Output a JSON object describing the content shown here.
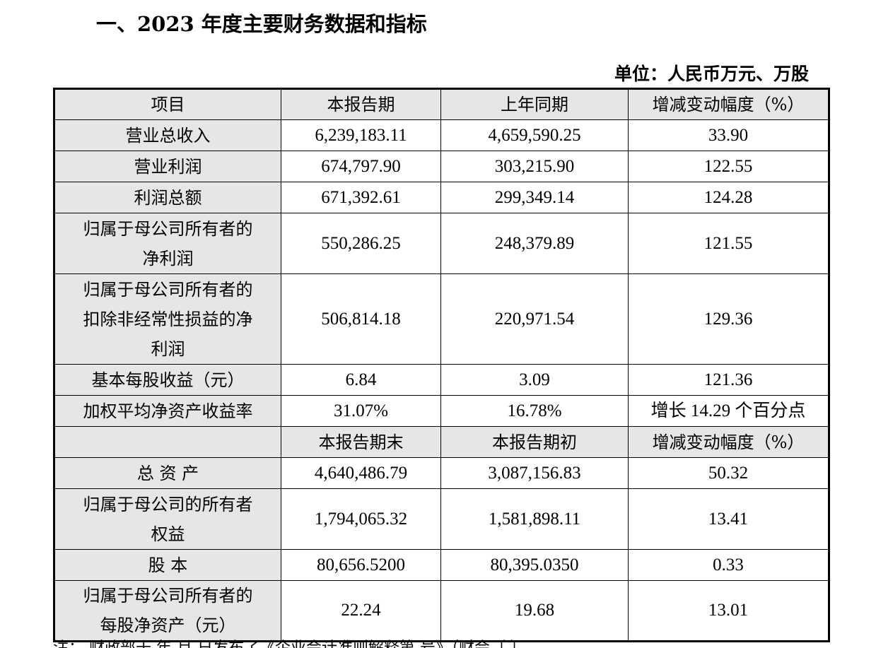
{
  "title": "一、2023 年度主要财务数据和指标",
  "unit": "单位：人民币万元、万股",
  "header1": [
    "项目",
    "本报告期",
    "上年同期",
    "增减变动幅度（%）"
  ],
  "rows1": [
    {
      "item": "营业总收入",
      "current": "6,239,183.11",
      "previous": "4,659,590.25",
      "change": "33.90",
      "h": 1
    },
    {
      "item": "营业利润",
      "current": "674,797.90",
      "previous": "303,215.90",
      "change": "122.55",
      "h": 1
    },
    {
      "item": "利润总额",
      "current": "671,392.61",
      "previous": "299,349.14",
      "change": "124.28",
      "h": 1
    },
    {
      "item": "归属于母公司所有者的\n净利润",
      "current": "550,286.25",
      "previous": "248,379.89",
      "change": "121.55",
      "h": 2
    },
    {
      "item": "归属于母公司所有者的\n扣除非经常性损益的净\n利润",
      "current": "506,814.18",
      "previous": "220,971.54",
      "change": "129.36",
      "h": 3
    },
    {
      "item": "基本每股收益（元）",
      "current": "6.84",
      "previous": "3.09",
      "change": "121.36",
      "h": 1
    },
    {
      "item": "加权平均净资产收益率",
      "current": "31.07%",
      "previous": "16.78%",
      "change": "增长 14.29 个百分点",
      "h": 1
    }
  ],
  "header2": [
    "",
    "本报告期末",
    "本报告期初",
    "增减变动幅度（%）"
  ],
  "rows2": [
    {
      "item": "总 资 产",
      "current": "4,640,486.79",
      "previous": "3,087,156.83",
      "change": "50.32",
      "h": 1
    },
    {
      "item": "归属于母公司的所有者\n权益",
      "current": "1,794,065.32",
      "previous": "1,581,898.11",
      "change": "13.41",
      "h": 2
    },
    {
      "item": "股 本",
      "current": "80,656.5200",
      "previous": "80,395.0350",
      "change": "0.33",
      "h": 1
    },
    {
      "item": "归属于母公司所有者的\n每股净资产（元）",
      "current": "22.24",
      "previous": "19.68",
      "change": "13.01",
      "h": 2
    }
  ],
  "footer_partial": "注：   财政部于    年   月   日发布了《企业会计准则解释第   号》（财会〔    〕"
}
